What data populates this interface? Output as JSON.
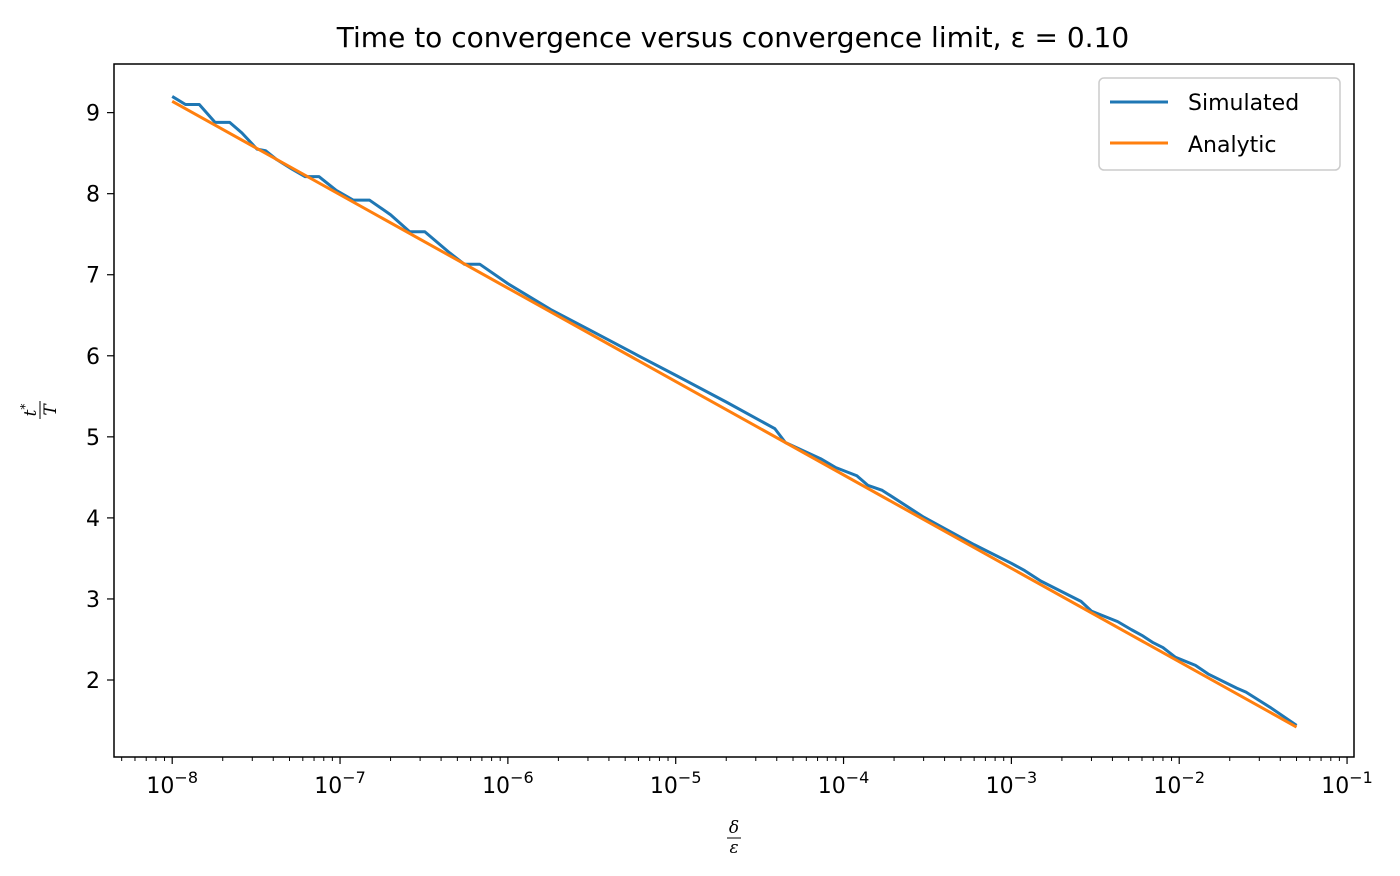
{
  "chart_data": {
    "type": "line",
    "title": "Time to convergence versus convergence limit, ε = 0.10",
    "xlabel": {
      "numerator": "δ",
      "denominator": "ε"
    },
    "ylabel": {
      "numerator": "t*",
      "denominator": "T"
    },
    "x_scale": "log",
    "xlim": [
      4.5e-09,
      0.11
    ],
    "ylim": [
      1.05,
      9.6
    ],
    "x_ticks": [
      {
        "value": 1e-08,
        "base": "10",
        "exp": "−8"
      },
      {
        "value": 1e-07,
        "base": "10",
        "exp": "−7"
      },
      {
        "value": 1e-06,
        "base": "10",
        "exp": "−6"
      },
      {
        "value": 1e-05,
        "base": "10",
        "exp": "−5"
      },
      {
        "value": 0.0001,
        "base": "10",
        "exp": "−4"
      },
      {
        "value": 0.001,
        "base": "10",
        "exp": "−3"
      },
      {
        "value": 0.01,
        "base": "10",
        "exp": "−2"
      },
      {
        "value": 0.1,
        "base": "10",
        "exp": "−1"
      }
    ],
    "y_ticks": [
      2,
      3,
      4,
      5,
      6,
      7,
      8,
      9
    ],
    "grid": false,
    "legend": "top-right",
    "series": [
      {
        "name": "Simulated",
        "color": "#1f77b4",
        "x": [
          1e-08,
          1.2e-08,
          1.45e-08,
          1.8e-08,
          2.2e-08,
          2.6e-08,
          3.2e-08,
          3.6e-08,
          4.2e-08,
          5.2e-08,
          6.2e-08,
          7.5e-08,
          9.5e-08,
          1.2e-07,
          1.5e-07,
          2e-07,
          2.6e-07,
          3.2e-07,
          4.5e-07,
          5.5e-07,
          6.8e-07,
          1e-06,
          1.8e-06,
          3e-06,
          6e-06,
          1e-05,
          2e-05,
          3.9e-05,
          4.5e-05,
          7.3e-05,
          9e-05,
          0.00012,
          0.00014,
          0.00017,
          0.0003,
          0.0006,
          0.001,
          0.0012,
          0.0015,
          0.0026,
          0.003,
          0.0043,
          0.0052,
          0.006,
          0.007,
          0.008,
          0.0095,
          0.0125,
          0.015,
          0.022,
          0.025,
          0.035,
          0.05
        ],
        "y": [
          9.2,
          9.1,
          9.1,
          8.88,
          8.88,
          8.75,
          8.55,
          8.53,
          8.42,
          8.3,
          8.21,
          8.21,
          8.04,
          7.92,
          7.92,
          7.74,
          7.53,
          7.53,
          7.27,
          7.13,
          7.13,
          6.89,
          6.57,
          6.33,
          6.0,
          5.76,
          5.43,
          5.1,
          4.93,
          4.73,
          4.62,
          4.52,
          4.4,
          4.34,
          4.01,
          3.67,
          3.44,
          3.35,
          3.22,
          2.97,
          2.85,
          2.72,
          2.62,
          2.55,
          2.46,
          2.4,
          2.28,
          2.18,
          2.07,
          1.9,
          1.85,
          1.66,
          1.44
        ]
      },
      {
        "name": "Analytic",
        "color": "#ff7f0e",
        "x": [
          1e-08,
          0.05
        ],
        "y": [
          9.14,
          1.42
        ]
      }
    ]
  }
}
